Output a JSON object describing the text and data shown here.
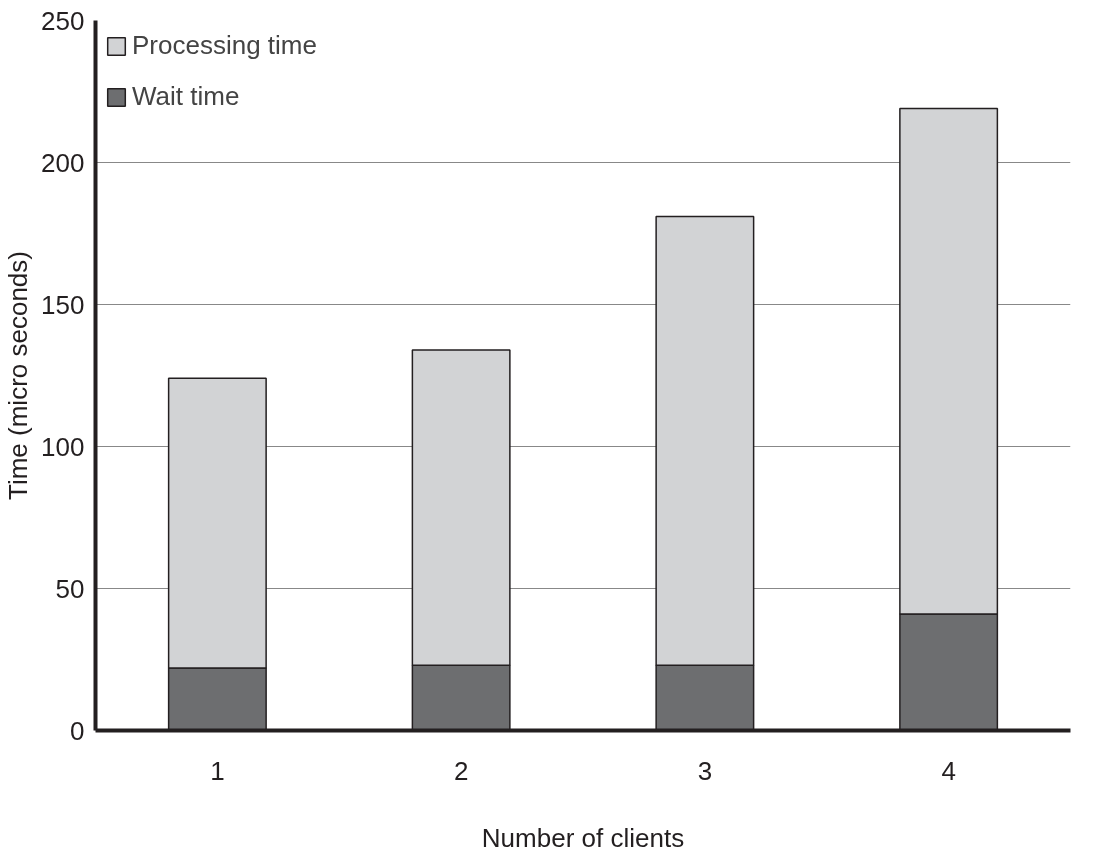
{
  "chart_data": {
    "type": "bar",
    "stacked": true,
    "xlabel": "Number of clients",
    "ylabel": "Time (micro seconds)",
    "categories": [
      "1",
      "2",
      "3",
      "4"
    ],
    "series": [
      {
        "name": "Wait time",
        "color": "#6d6e70",
        "values": [
          22,
          23,
          23,
          41
        ]
      },
      {
        "name": "Processing time",
        "color": "#d2d3d5",
        "values": [
          102,
          111,
          158,
          178
        ]
      }
    ],
    "ylim": [
      0,
      250
    ],
    "yticks": [
      0,
      50,
      100,
      150,
      200,
      250
    ],
    "grid": "y",
    "legend": "top left"
  }
}
